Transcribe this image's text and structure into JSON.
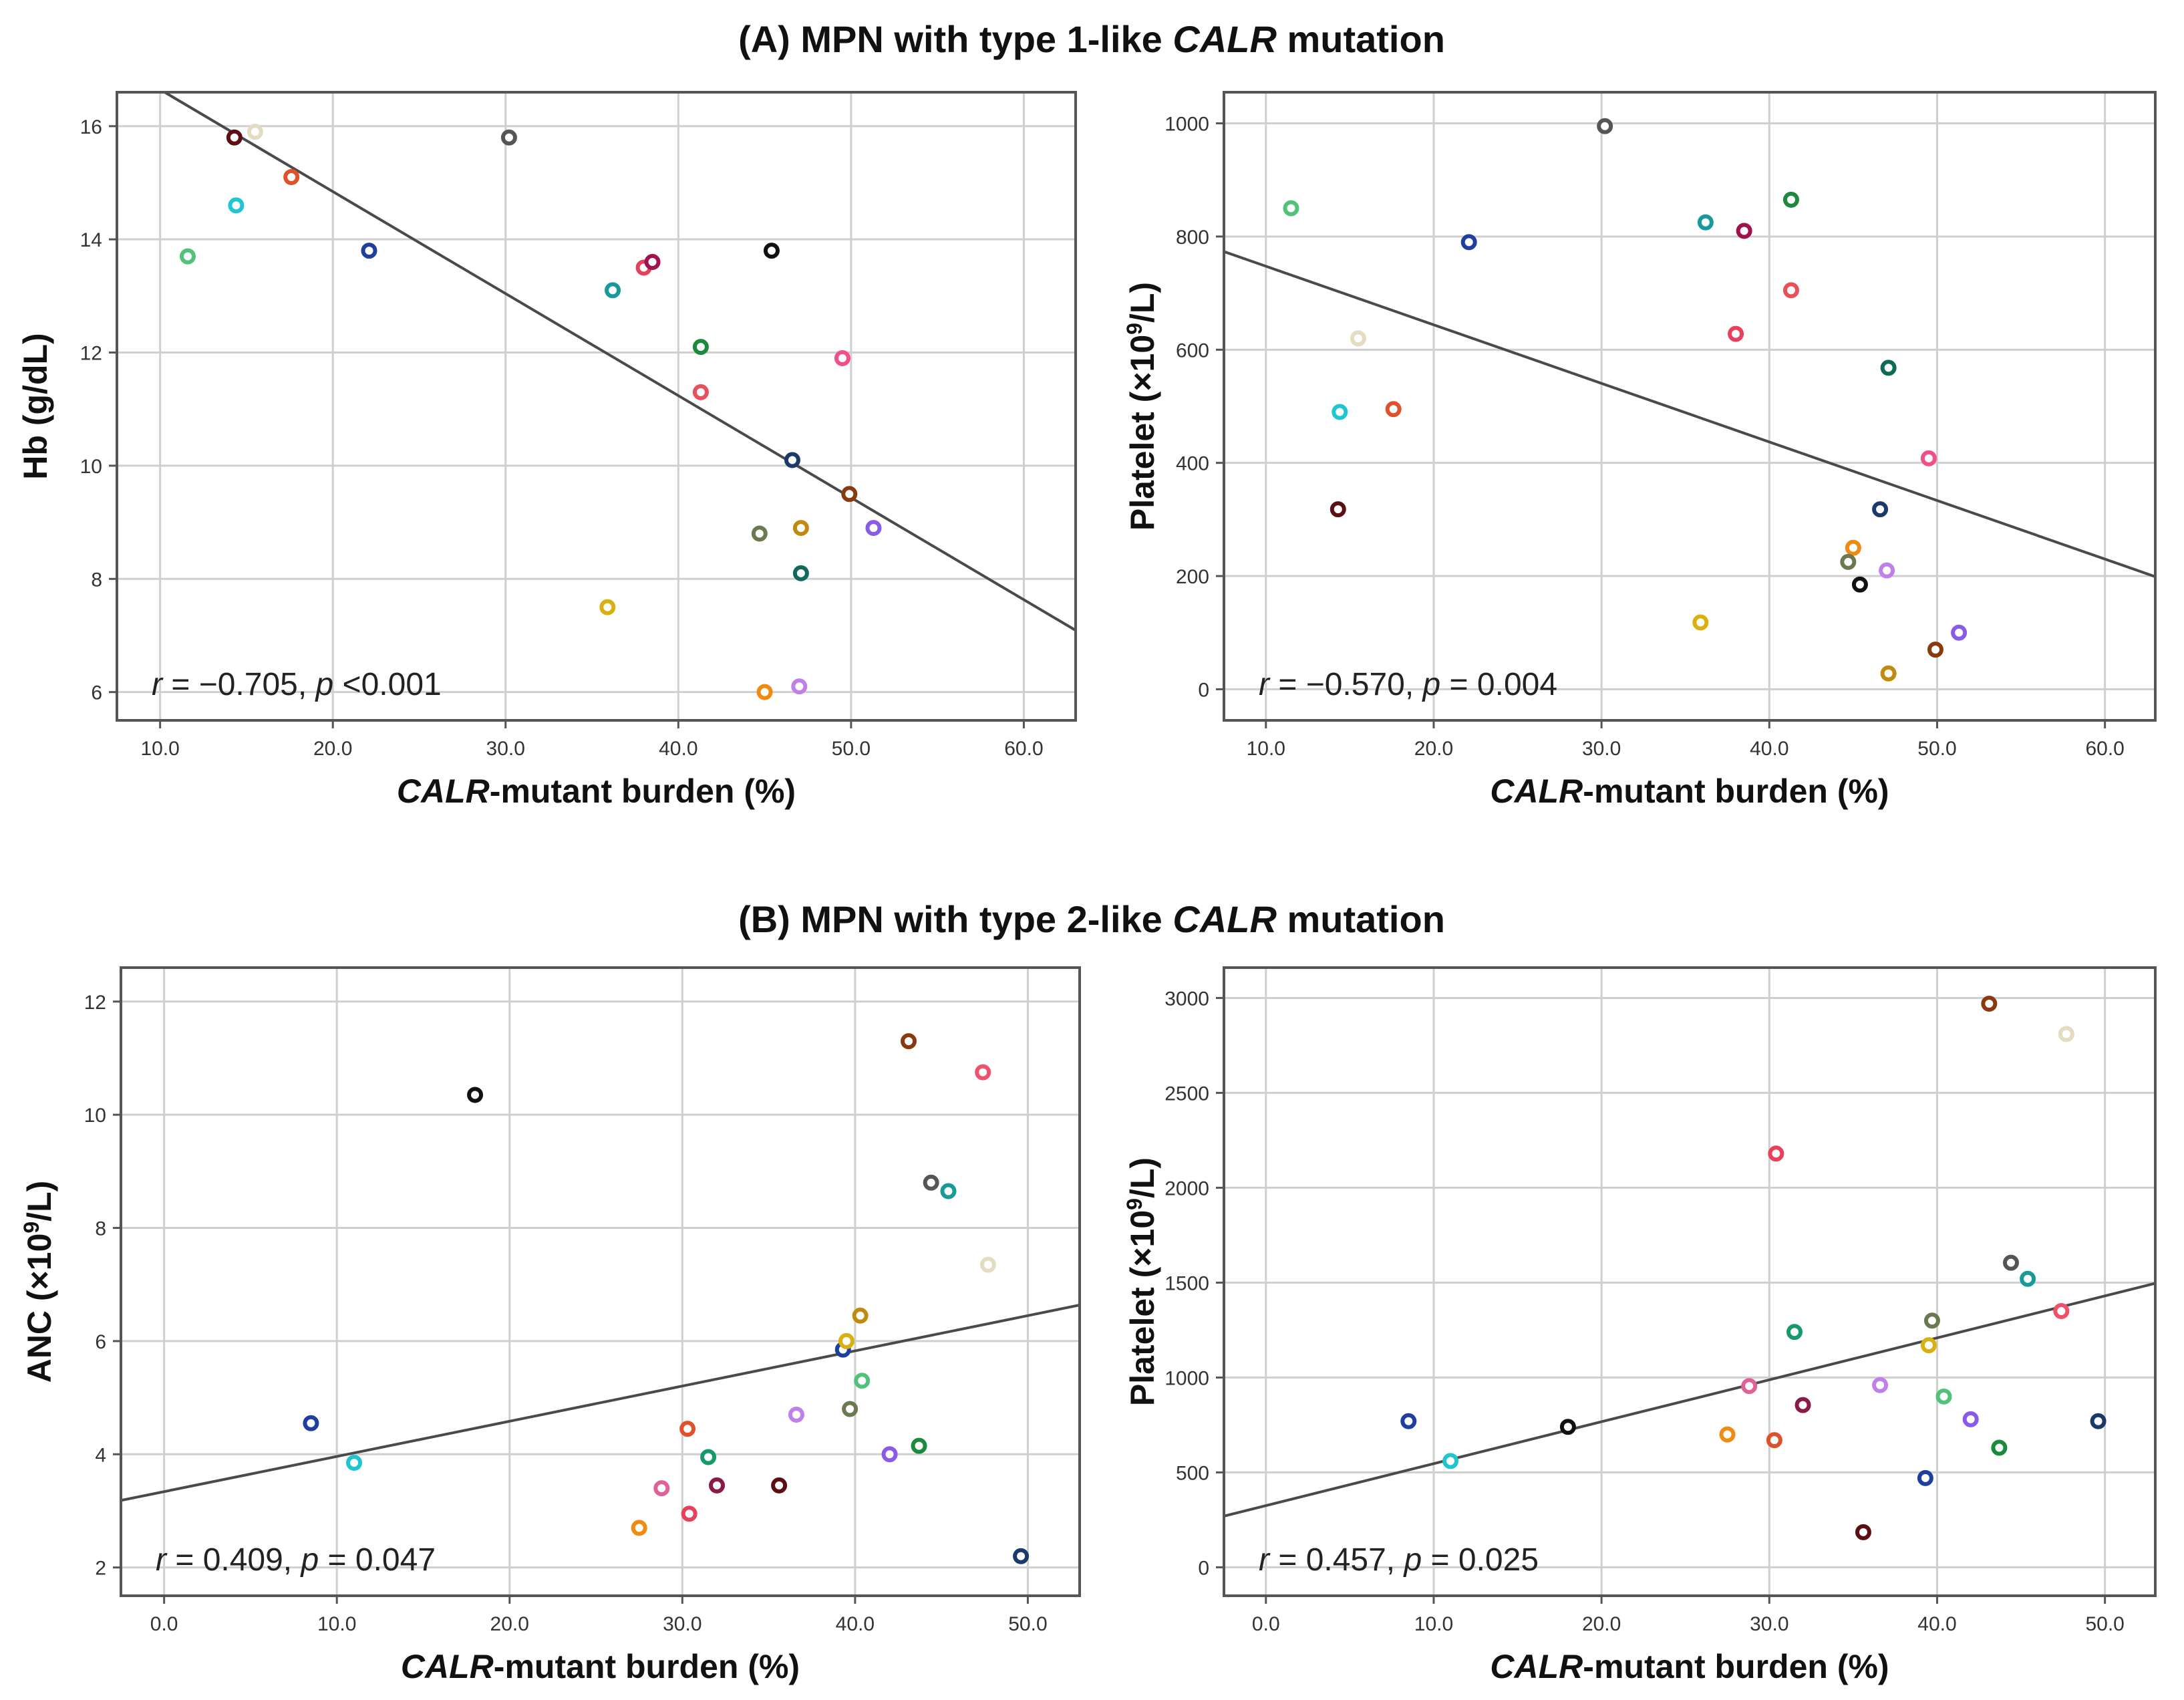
{
  "figure": {
    "section_a_title": {
      "prefix": "(A) MPN with type 1-like ",
      "gene": "CALR",
      "suffix": " mutation"
    },
    "section_b_title": {
      "prefix": "(B) MPN with type 2-like ",
      "gene": "CALR",
      "suffix": " mutation"
    }
  },
  "chart_data": [
    {
      "id": "a_hb",
      "type": "scatter",
      "xlabel": {
        "italic": "CALR",
        "rest": "-mutant burden (%)"
      },
      "ylabel": {
        "text": "Hb (g/dL)"
      },
      "xlim": [
        7.5,
        63
      ],
      "ylim": [
        5.5,
        16.6
      ],
      "xticks": [
        10,
        20,
        30,
        40,
        50,
        60
      ],
      "yticks": [
        6,
        8,
        10,
        12,
        14,
        16
      ],
      "ytick_format": "int",
      "grid": true,
      "stat": {
        "r_value": "= −0.705, ",
        "p_value": "<0.001"
      },
      "regression": {
        "intercept": 18.45,
        "slope": -0.1803
      },
      "points": [
        {
          "x": 14.3,
          "y": 15.8,
          "color": "#5b0f12"
        },
        {
          "x": 15.5,
          "y": 15.9,
          "color": "#e3dcc0"
        },
        {
          "x": 17.6,
          "y": 15.1,
          "color": "#e0502a"
        },
        {
          "x": 14.4,
          "y": 14.6,
          "color": "#1fc6cf"
        },
        {
          "x": 11.6,
          "y": 13.7,
          "color": "#52c27a"
        },
        {
          "x": 22.1,
          "y": 13.8,
          "color": "#1f3f9f"
        },
        {
          "x": 30.2,
          "y": 15.8,
          "color": "#555555"
        },
        {
          "x": 36.2,
          "y": 13.1,
          "color": "#179a9a"
        },
        {
          "x": 38.0,
          "y": 13.5,
          "color": "#e8405a"
        },
        {
          "x": 38.5,
          "y": 13.6,
          "color": "#a0124e"
        },
        {
          "x": 45.4,
          "y": 13.8,
          "color": "#111111"
        },
        {
          "x": 41.3,
          "y": 12.1,
          "color": "#1c8a3c"
        },
        {
          "x": 41.3,
          "y": 11.3,
          "color": "#e8505a"
        },
        {
          "x": 49.5,
          "y": 11.9,
          "color": "#f0508a"
        },
        {
          "x": 46.6,
          "y": 10.1,
          "color": "#1a3a6a"
        },
        {
          "x": 49.9,
          "y": 9.5,
          "color": "#8a3a10"
        },
        {
          "x": 44.7,
          "y": 8.8,
          "color": "#6a7a50"
        },
        {
          "x": 47.1,
          "y": 8.9,
          "color": "#c08a10"
        },
        {
          "x": 51.3,
          "y": 8.9,
          "color": "#8a5aea"
        },
        {
          "x": 47.1,
          "y": 8.1,
          "color": "#0f6a5a"
        },
        {
          "x": 35.9,
          "y": 7.5,
          "color": "#d8b010"
        },
        {
          "x": 45.0,
          "y": 6.0,
          "color": "#f08a10"
        },
        {
          "x": 47.0,
          "y": 6.1,
          "color": "#c080ea"
        }
      ]
    },
    {
      "id": "a_plt",
      "type": "scatter",
      "xlabel": {
        "italic": "CALR",
        "rest": "-mutant burden (%)"
      },
      "ylabel": {
        "text": "Platelet (×10",
        "sup": "9",
        "unit": "/L)"
      },
      "xlim": [
        7.5,
        63
      ],
      "ylim": [
        -55,
        1055
      ],
      "xticks": [
        10,
        20,
        30,
        40,
        50,
        60
      ],
      "yticks": [
        0,
        200,
        400,
        600,
        800,
        1000
      ],
      "ytick_format": "int",
      "grid": true,
      "stat": {
        "r_value": "= −0.570, ",
        "p_value": "= 0.004"
      },
      "regression": {
        "intercept": 851,
        "slope": -10.35
      },
      "points": [
        {
          "x": 11.5,
          "y": 850,
          "color": "#52c27a"
        },
        {
          "x": 15.5,
          "y": 620,
          "color": "#e3dcc0"
        },
        {
          "x": 14.4,
          "y": 490,
          "color": "#1fc6cf"
        },
        {
          "x": 17.6,
          "y": 495,
          "color": "#e0502a"
        },
        {
          "x": 14.3,
          "y": 318,
          "color": "#5b0f12"
        },
        {
          "x": 22.1,
          "y": 790,
          "color": "#1f3f9f"
        },
        {
          "x": 30.2,
          "y": 995,
          "color": "#555555"
        },
        {
          "x": 36.2,
          "y": 825,
          "color": "#179a9a"
        },
        {
          "x": 38.5,
          "y": 810,
          "color": "#a0124e"
        },
        {
          "x": 41.3,
          "y": 865,
          "color": "#1c8a3c"
        },
        {
          "x": 41.3,
          "y": 705,
          "color": "#e8505a"
        },
        {
          "x": 38.0,
          "y": 628,
          "color": "#e8405a"
        },
        {
          "x": 47.1,
          "y": 568,
          "color": "#0f6a5a"
        },
        {
          "x": 49.5,
          "y": 408,
          "color": "#f0508a"
        },
        {
          "x": 46.6,
          "y": 318,
          "color": "#1a3a6a"
        },
        {
          "x": 45.0,
          "y": 250,
          "color": "#f08a10"
        },
        {
          "x": 44.7,
          "y": 225,
          "color": "#6a7a50"
        },
        {
          "x": 47.0,
          "y": 210,
          "color": "#c080ea"
        },
        {
          "x": 45.4,
          "y": 185,
          "color": "#111111"
        },
        {
          "x": 35.9,
          "y": 118,
          "color": "#d8b010"
        },
        {
          "x": 51.3,
          "y": 100,
          "color": "#8a5aea"
        },
        {
          "x": 49.9,
          "y": 70,
          "color": "#8a3a10"
        },
        {
          "x": 47.1,
          "y": 28,
          "color": "#c08a10"
        }
      ]
    },
    {
      "id": "b_anc",
      "type": "scatter",
      "xlabel": {
        "italic": "CALR",
        "rest": "-mutant burden (%)"
      },
      "ylabel": {
        "text": "ANC (×10",
        "sup": "9",
        "unit": "/L)"
      },
      "xlim": [
        -2.5,
        53
      ],
      "ylim": [
        1.5,
        12.6
      ],
      "xticks": [
        0,
        10,
        20,
        30,
        40,
        50
      ],
      "yticks": [
        2,
        4,
        6,
        8,
        10,
        12
      ],
      "ytick_format": "int",
      "grid": true,
      "stat": {
        "r_value": "= 0.409, ",
        "p_value": "= 0.047"
      },
      "regression": {
        "intercept": 3.34,
        "slope": 0.0622
      },
      "points": [
        {
          "x": 8.5,
          "y": 4.55,
          "color": "#1f3f9f"
        },
        {
          "x": 11.0,
          "y": 3.85,
          "color": "#1fc6cf"
        },
        {
          "x": 18.0,
          "y": 10.35,
          "color": "#111111"
        },
        {
          "x": 27.5,
          "y": 2.7,
          "color": "#f08a10"
        },
        {
          "x": 28.8,
          "y": 3.4,
          "color": "#e0609a"
        },
        {
          "x": 30.3,
          "y": 4.45,
          "color": "#e0502a"
        },
        {
          "x": 30.4,
          "y": 2.95,
          "color": "#e8405a"
        },
        {
          "x": 31.5,
          "y": 3.95,
          "color": "#179a6a"
        },
        {
          "x": 32.0,
          "y": 3.45,
          "color": "#8a1a4a"
        },
        {
          "x": 35.6,
          "y": 3.45,
          "color": "#5b0f12"
        },
        {
          "x": 36.6,
          "y": 4.7,
          "color": "#c080ea"
        },
        {
          "x": 39.3,
          "y": 5.85,
          "color": "#1f3f9f"
        },
        {
          "x": 39.5,
          "y": 6.0,
          "color": "#d8b010"
        },
        {
          "x": 39.7,
          "y": 4.8,
          "color": "#6a7a50"
        },
        {
          "x": 40.3,
          "y": 6.45,
          "color": "#c08a10"
        },
        {
          "x": 40.4,
          "y": 5.3,
          "color": "#52c27a"
        },
        {
          "x": 42.0,
          "y": 4.0,
          "color": "#8a5aea"
        },
        {
          "x": 43.7,
          "y": 4.15,
          "color": "#1c8a3c"
        },
        {
          "x": 43.1,
          "y": 11.3,
          "color": "#8a3a10"
        },
        {
          "x": 44.4,
          "y": 8.8,
          "color": "#555555"
        },
        {
          "x": 45.4,
          "y": 8.65,
          "color": "#179a9a"
        },
        {
          "x": 47.4,
          "y": 10.75,
          "color": "#f0506a"
        },
        {
          "x": 47.7,
          "y": 7.35,
          "color": "#e3dcc0"
        },
        {
          "x": 49.6,
          "y": 2.2,
          "color": "#1a3a6a"
        }
      ]
    },
    {
      "id": "b_plt",
      "type": "scatter",
      "xlabel": {
        "italic": "CALR",
        "rest": "-mutant burden (%)"
      },
      "ylabel": {
        "text": "Platelet (×10",
        "sup": "9",
        "unit": "/L)"
      },
      "xlim": [
        -2.5,
        53
      ],
      "ylim": [
        -150,
        3160
      ],
      "xticks": [
        0,
        10,
        20,
        30,
        40,
        50
      ],
      "yticks": [
        0,
        500,
        1000,
        1500,
        2000,
        2500,
        3000
      ],
      "ytick_format": "int",
      "grid": true,
      "stat": {
        "r_value": "= 0.457, ",
        "p_value": "= 0.025"
      },
      "regression": {
        "intercept": 325,
        "slope": 22.1
      },
      "points": [
        {
          "x": 8.5,
          "y": 770,
          "color": "#1f3f9f"
        },
        {
          "x": 11.0,
          "y": 560,
          "color": "#1fc6cf"
        },
        {
          "x": 18.0,
          "y": 740,
          "color": "#111111"
        },
        {
          "x": 27.5,
          "y": 700,
          "color": "#f08a10"
        },
        {
          "x": 28.8,
          "y": 955,
          "color": "#e0609a"
        },
        {
          "x": 30.3,
          "y": 670,
          "color": "#e0502a"
        },
        {
          "x": 30.4,
          "y": 2180,
          "color": "#e8405a"
        },
        {
          "x": 31.5,
          "y": 1240,
          "color": "#179a6a"
        },
        {
          "x": 32.0,
          "y": 855,
          "color": "#8a1a4a"
        },
        {
          "x": 35.6,
          "y": 185,
          "color": "#5b0f12"
        },
        {
          "x": 36.6,
          "y": 960,
          "color": "#c080ea"
        },
        {
          "x": 39.3,
          "y": 470,
          "color": "#1f3f9f"
        },
        {
          "x": 39.5,
          "y": 1170,
          "color": "#d8b010"
        },
        {
          "x": 39.7,
          "y": 1300,
          "color": "#6a7a50"
        },
        {
          "x": 40.4,
          "y": 900,
          "color": "#52c27a"
        },
        {
          "x": 42.0,
          "y": 780,
          "color": "#8a5aea"
        },
        {
          "x": 43.7,
          "y": 630,
          "color": "#1c8a3c"
        },
        {
          "x": 43.1,
          "y": 2970,
          "color": "#8a3a10"
        },
        {
          "x": 44.4,
          "y": 1605,
          "color": "#555555"
        },
        {
          "x": 45.4,
          "y": 1520,
          "color": "#179a9a"
        },
        {
          "x": 47.4,
          "y": 1350,
          "color": "#f0506a"
        },
        {
          "x": 47.7,
          "y": 2810,
          "color": "#e3dcc0"
        },
        {
          "x": 49.6,
          "y": 770,
          "color": "#1a3a6a"
        }
      ]
    }
  ]
}
